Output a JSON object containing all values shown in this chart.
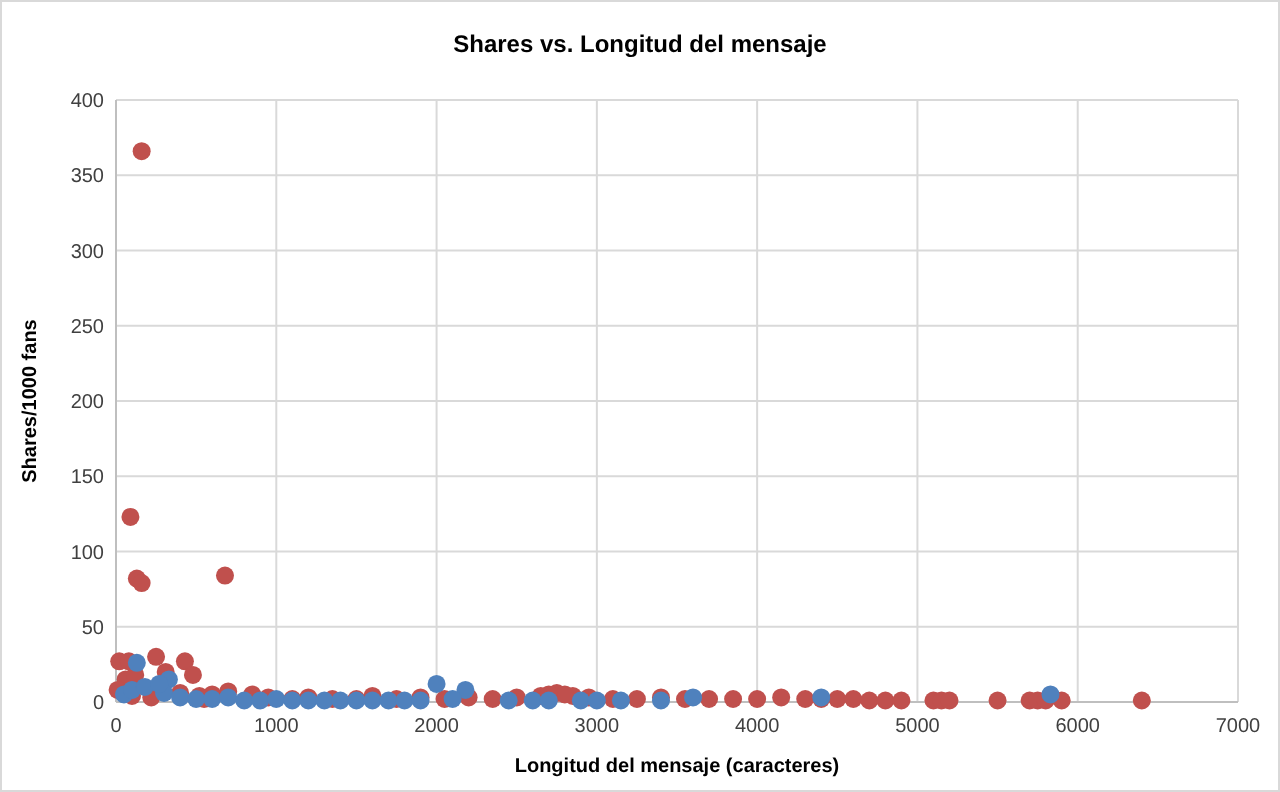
{
  "chart_data": {
    "type": "scatter",
    "title": "Shares vs. Longitud del mensaje",
    "xlabel": "Longitud del mensaje (caracteres)",
    "ylabel": "Shares/1000 fans",
    "xlim": [
      0,
      7000
    ],
    "ylim": [
      0,
      400
    ],
    "xticks": [
      0,
      1000,
      2000,
      3000,
      4000,
      5000,
      6000,
      7000
    ],
    "yticks": [
      0,
      50,
      100,
      150,
      200,
      250,
      300,
      350,
      400
    ],
    "grid": true,
    "marker": "circle",
    "series": [
      {
        "color": "#c0504d",
        "x": [
          160,
          90,
          130,
          160,
          680,
          250,
          20,
          80,
          430,
          480,
          310,
          60,
          120,
          400,
          520,
          600,
          700,
          850,
          950,
          1100,
          1200,
          1350,
          1500,
          1600,
          1750,
          1900,
          2050,
          2200,
          2350,
          2500,
          2650,
          2750,
          2850,
          2950,
          3100,
          3250,
          3400,
          3550,
          3700,
          3850,
          4000,
          4150,
          4300,
          4400,
          4500,
          4600,
          4700,
          4800,
          4900,
          5100,
          5150,
          5200,
          5500,
          5700,
          5750,
          5800,
          5900,
          6400,
          10,
          100,
          220,
          550,
          2800,
          2700
        ],
        "values": [
          366,
          123,
          82,
          79,
          84,
          30,
          27,
          27,
          27,
          18,
          20,
          15,
          18,
          6,
          4,
          5,
          7,
          5,
          3,
          2,
          3,
          2,
          2,
          4,
          2,
          3,
          2,
          3,
          2,
          3,
          4,
          6,
          4,
          3,
          2,
          2,
          3,
          2,
          2,
          2,
          2,
          3,
          2,
          2,
          2,
          2,
          1,
          1,
          1,
          1,
          1,
          1,
          1,
          1,
          1,
          1,
          1,
          1,
          8,
          4,
          3,
          2,
          5,
          5
        ]
      },
      {
        "color": "#4f81bd",
        "x": [
          130,
          2000,
          2180,
          5830,
          330,
          50,
          100,
          300,
          400,
          500,
          600,
          700,
          800,
          900,
          1000,
          1100,
          1200,
          1300,
          1400,
          1500,
          1600,
          1700,
          1800,
          1900,
          2100,
          2450,
          2600,
          2700,
          2900,
          3000,
          3150,
          3400,
          3600,
          4400,
          180,
          270
        ],
        "values": [
          26,
          12,
          8,
          5,
          15,
          5,
          8,
          6,
          3,
          2,
          2,
          3,
          1,
          1,
          2,
          1,
          1,
          1,
          1,
          1,
          1,
          1,
          1,
          1,
          2,
          1,
          1,
          1,
          1,
          1,
          1,
          1,
          3,
          3,
          10,
          12
        ]
      }
    ]
  }
}
